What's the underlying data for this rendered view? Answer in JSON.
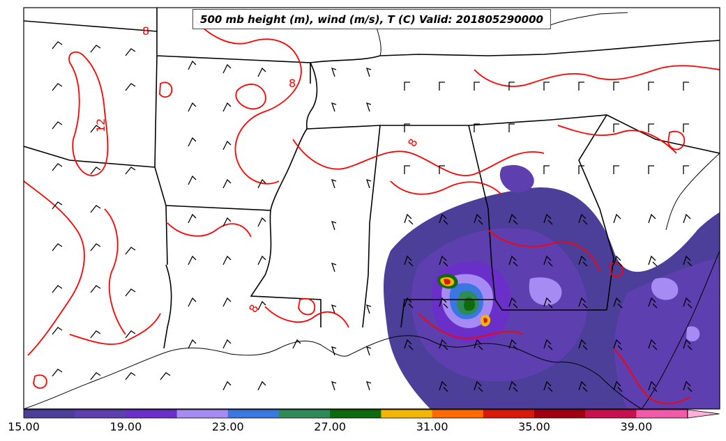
{
  "title": "500 mb height (m), wind (m/s), T (C) Valid: 201805290000",
  "contour_labels": [
    "8",
    "12",
    "8",
    "8",
    "8"
  ],
  "colorbar": {
    "ticks": [
      "15.00",
      "19.00",
      "23.00",
      "27.00",
      "31.00",
      "35.00",
      "39.00"
    ],
    "colors": [
      "#4b3f9a",
      "#5e3fb0",
      "#6a2fc8",
      "#a78bf5",
      "#3a77e3",
      "#2e8b57",
      "#0d6b0d",
      "#f2b705",
      "#ff6a00",
      "#d91a0a",
      "#a00010",
      "#c8104e",
      "#f05aa8",
      "#ffb0d8"
    ]
  },
  "theme": {
    "contour_color": "#ff0000",
    "boundary_color": "#000000"
  }
}
